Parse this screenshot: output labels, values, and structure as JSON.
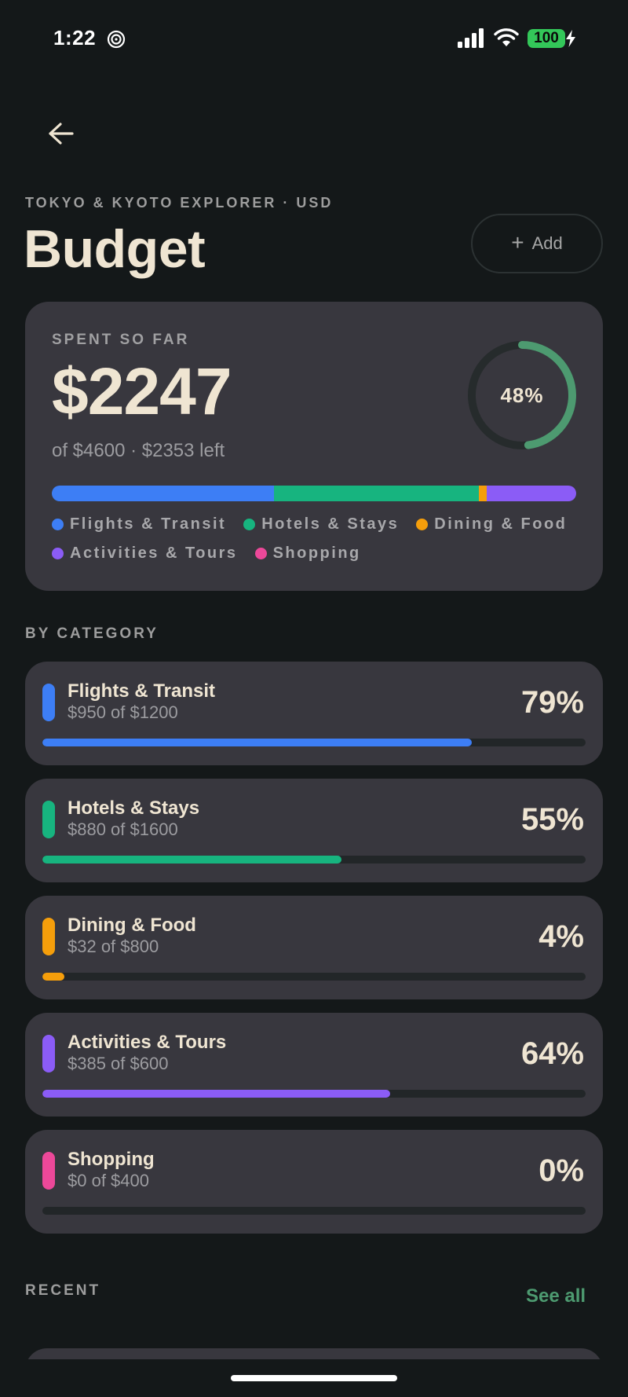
{
  "status_bar": {
    "time": "1:22",
    "battery": "100",
    "icons": [
      "focus-icon",
      "signal-icon",
      "wifi-icon",
      "battery-icon",
      "charging-bolt-icon"
    ]
  },
  "header": {
    "back_icon": "arrow-left-icon",
    "subtitle": "TOKYO & KYOTO EXPLORER · USD",
    "title": "Budget",
    "add_label": "Add",
    "add_icon": "plus-icon"
  },
  "summary": {
    "label": "SPENT SO FAR",
    "amount": "$2247",
    "detail": "of $4600 · $2353 left",
    "percent_label": "48%",
    "percent_value": 0.48,
    "ring_color": "#4d9a70",
    "legend": [
      {
        "label": "Flights & Transit",
        "color": "#3d7ef5",
        "share": 0.423
      },
      {
        "label": "Hotels & Stays",
        "color": "#17b47f",
        "share": 0.392
      },
      {
        "label": "Dining & Food",
        "color": "#f59e0b",
        "share": 0.014
      },
      {
        "label": "Activities & Tours",
        "color": "#8b5cf6",
        "share": 0.171
      },
      {
        "label": "Shopping",
        "color": "#ec4899",
        "share": 0.0
      }
    ]
  },
  "categories_section": {
    "label": "BY CATEGORY",
    "items": [
      {
        "name": "Flights & Transit",
        "detail": "$950 of $1200",
        "percent": "79%",
        "fill": 0.79,
        "color": "#3d7ef5"
      },
      {
        "name": "Hotels & Stays",
        "detail": "$880 of $1600",
        "percent": "55%",
        "fill": 0.55,
        "color": "#17b47f"
      },
      {
        "name": "Dining & Food",
        "detail": "$32 of $800",
        "percent": "4%",
        "fill": 0.04,
        "color": "#f59e0b"
      },
      {
        "name": "Activities & Tours",
        "detail": "$385 of $600",
        "percent": "64%",
        "fill": 0.64,
        "color": "#8b5cf6"
      },
      {
        "name": "Shopping",
        "detail": "$0 of $400",
        "percent": "0%",
        "fill": 0.0,
        "color": "#ec4899"
      }
    ]
  },
  "recent": {
    "label": "RECENT",
    "see_all": "See all"
  }
}
